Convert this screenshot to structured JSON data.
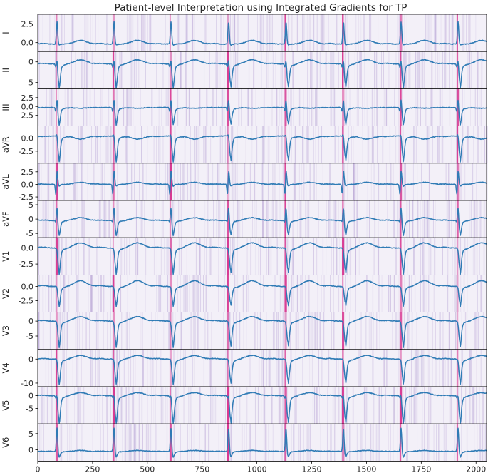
{
  "chart_data": {
    "type": "line",
    "title": "Patient-level Interpretation using Integrated Gradients for TP",
    "xlabel": "",
    "xlim": [
      0,
      2048
    ],
    "x_ticks": [
      0,
      250,
      500,
      750,
      1000,
      1250,
      1500,
      1750,
      2000
    ],
    "beat_onsets": [
      85,
      345,
      605,
      868,
      1130,
      1392,
      1655,
      1915
    ],
    "line_color": "#2f7bb5",
    "attribution_color": "#d62c8a",
    "attribution_background": "#f3f0f8",
    "leads": [
      {
        "name": "I",
        "ylim": [
          -1.2,
          3.8
        ],
        "yticks": [
          {
            "v": 2.5,
            "label": "2.5"
          },
          {
            "v": 0.0,
            "label": "0.0"
          }
        ],
        "shape": {
          "r": 2.8,
          "q": 0.0,
          "s": -0.3,
          "t": 0.5,
          "baseline": -0.2,
          "invert": false
        }
      },
      {
        "name": "II",
        "ylim": [
          -6.5,
          2.5
        ],
        "yticks": [
          {
            "v": 0,
            "label": "0"
          },
          {
            "v": -5,
            "label": "-5"
          }
        ],
        "shape": {
          "r": 1.5,
          "q": -1.0,
          "s": -5.5,
          "t": 1.0,
          "baseline": -0.5,
          "invert": false
        }
      },
      {
        "name": "III",
        "ylim": [
          -5.5,
          5.0
        ],
        "yticks": [
          {
            "v": 2.5,
            "label": "2.5"
          },
          {
            "v": 0.0,
            "label": "0.0"
          },
          {
            "v": -2.5,
            "label": "-2.5"
          }
        ],
        "shape": {
          "r": 3.0,
          "q": -1.5,
          "s": -4.5,
          "t": -0.2,
          "baseline": -0.3,
          "invert": false
        }
      },
      {
        "name": "aVR",
        "ylim": [
          -4.8,
          2.3
        ],
        "yticks": [
          {
            "v": 0.0,
            "label": "0.0"
          },
          {
            "v": -2.5,
            "label": "-2.5"
          }
        ],
        "shape": {
          "r": 1.3,
          "q": 0.0,
          "s": -3.8,
          "t": -0.6,
          "baseline": 0.4,
          "invert": false
        }
      },
      {
        "name": "aVL",
        "ylim": [
          -3.2,
          4.2
        ],
        "yticks": [
          {
            "v": 2.5,
            "label": "2.5"
          },
          {
            "v": 0.0,
            "label": "0.0"
          },
          {
            "v": -2.5,
            "label": "-2.5"
          }
        ],
        "shape": {
          "r": 3.0,
          "q": -2.5,
          "s": -0.3,
          "t": 0.4,
          "baseline": 0.0,
          "invert": false
        }
      },
      {
        "name": "aVF",
        "ylim": [
          -6.5,
          6.5
        ],
        "yticks": [
          {
            "v": 5,
            "label": "5"
          },
          {
            "v": 0,
            "label": "0"
          },
          {
            "v": -5,
            "label": "-5"
          }
        ],
        "shape": {
          "r": 5.0,
          "q": -1.0,
          "s": -5.0,
          "t": 1.0,
          "baseline": -0.5,
          "invert": false
        }
      },
      {
        "name": "V1",
        "ylim": [
          -4.2,
          1.6
        ],
        "yticks": [
          {
            "v": 0.0,
            "label": "0.0"
          },
          {
            "v": -2.5,
            "label": "-2.5"
          }
        ],
        "shape": {
          "r": 0.3,
          "q": 0.0,
          "s": -3.5,
          "t": 0.8,
          "baseline": 0.0,
          "invert": false
        }
      },
      {
        "name": "V2",
        "ylim": [
          -4.5,
          2.0
        ],
        "yticks": [
          {
            "v": 0.0,
            "label": "0.0"
          },
          {
            "v": -2.5,
            "label": "-2.5"
          }
        ],
        "shape": {
          "r": 0.3,
          "q": 0.0,
          "s": -3.0,
          "t": 1.0,
          "baseline": 0.0,
          "invert": false
        }
      },
      {
        "name": "V3",
        "ylim": [
          -9.5,
          3.0
        ],
        "yticks": [
          {
            "v": 0,
            "label": "0"
          },
          {
            "v": -5,
            "label": "-5"
          }
        ],
        "shape": {
          "r": 0.5,
          "q": 0.0,
          "s": -7.5,
          "t": 1.5,
          "baseline": 0.0,
          "invert": false
        }
      },
      {
        "name": "V4",
        "ylim": [
          -11.5,
          4.0
        ],
        "yticks": [
          {
            "v": 0,
            "label": "0"
          },
          {
            "v": -10,
            "label": "-10"
          }
        ],
        "shape": {
          "r": 1.0,
          "q": 0.0,
          "s": -9.0,
          "t": 1.5,
          "baseline": 0.0,
          "invert": false
        }
      },
      {
        "name": "V5",
        "ylim": [
          -11.0,
          3.5
        ],
        "yticks": [
          {
            "v": 0,
            "label": "0"
          },
          {
            "v": -5,
            "label": "-5"
          }
        ],
        "shape": {
          "r": 2.0,
          "q": -1.0,
          "s": -9.5,
          "t": 1.2,
          "baseline": 0.0,
          "invert": false
        }
      },
      {
        "name": "V6",
        "ylim": [
          -3.5,
          8.0
        ],
        "yticks": [
          {
            "v": 5,
            "label": "5"
          },
          {
            "v": 0,
            "label": "0"
          }
        ],
        "shape": {
          "r": 7.0,
          "q": 0.0,
          "s": -2.0,
          "t": 0.3,
          "baseline": -0.5,
          "invert": false
        }
      }
    ]
  }
}
